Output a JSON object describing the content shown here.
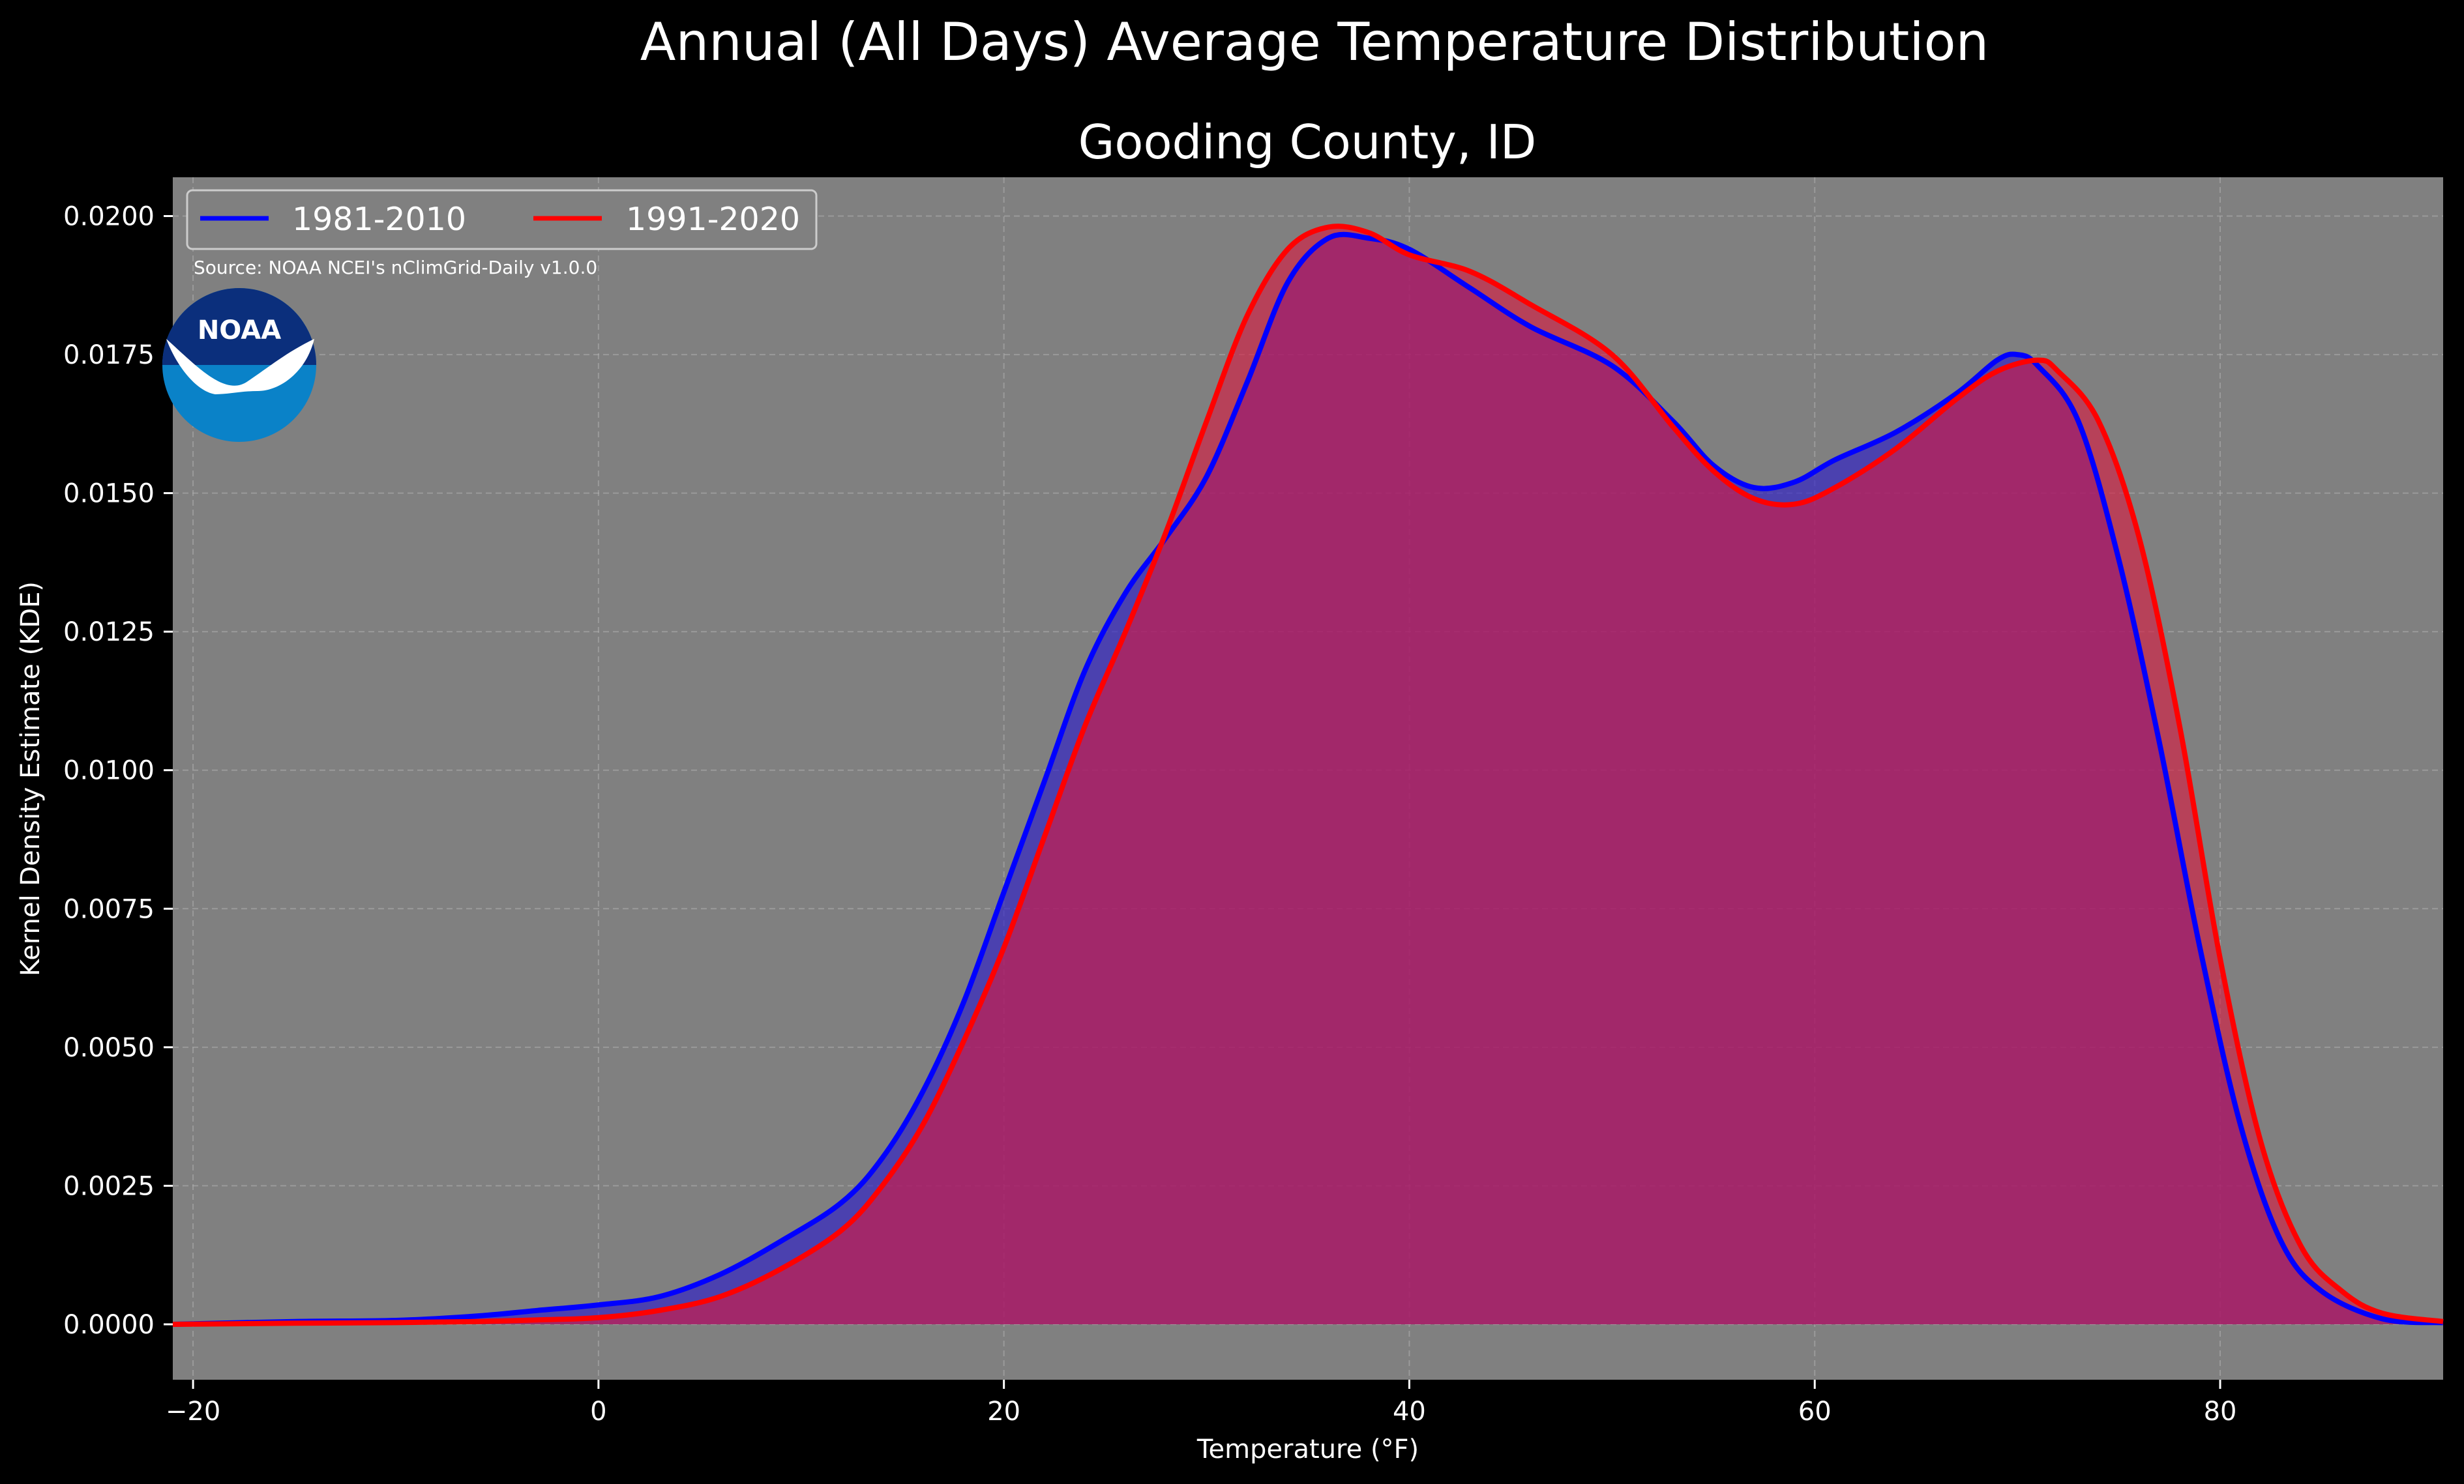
{
  "chart_data": {
    "type": "area",
    "suptitle": "Annual (All Days) Average Temperature Distribution",
    "title": "Gooding County, ID",
    "xlabel": "Temperature (°F)",
    "ylabel": "Kernel Density Estimate (KDE)",
    "source": "Source: NOAA NCEI's nClimGrid-Daily v1.0.0",
    "logo_text": "NOAA",
    "xlim": [
      -21,
      91
    ],
    "ylim": [
      -0.001,
      0.0207
    ],
    "x_ticks": [
      -20,
      0,
      20,
      40,
      60,
      80
    ],
    "x_tick_labels": [
      "−20",
      "0",
      "20",
      "40",
      "60",
      "80"
    ],
    "y_ticks": [
      0.0,
      0.0025,
      0.005,
      0.0075,
      0.01,
      0.0125,
      0.015,
      0.0175,
      0.02
    ],
    "y_tick_labels": [
      "0.0000",
      "0.0025",
      "0.0050",
      "0.0075",
      "0.0100",
      "0.0125",
      "0.0150",
      "0.0175",
      "0.0200"
    ],
    "grid": true,
    "legend_position": "top-left",
    "background_color": "#808080",
    "series": [
      {
        "name": "1981-2010",
        "color": "#0000ff",
        "fill": "#2a1acc",
        "points": [
          [
            -21,
            0.0
          ],
          [
            -15,
            5e-05
          ],
          [
            -10,
            7e-05
          ],
          [
            -6,
            0.00015
          ],
          [
            -3,
            0.00025
          ],
          [
            0,
            0.00035
          ],
          [
            3,
            0.0005
          ],
          [
            6,
            0.0009
          ],
          [
            9,
            0.0015
          ],
          [
            12,
            0.0022
          ],
          [
            14,
            0.003
          ],
          [
            16,
            0.0042
          ],
          [
            18,
            0.0058
          ],
          [
            20,
            0.0078
          ],
          [
            22,
            0.0098
          ],
          [
            24,
            0.0118
          ],
          [
            26,
            0.0132
          ],
          [
            28,
            0.0142
          ],
          [
            30,
            0.0153
          ],
          [
            32,
            0.017
          ],
          [
            34,
            0.0188
          ],
          [
            36,
            0.0196
          ],
          [
            38,
            0.0196
          ],
          [
            40,
            0.0194
          ],
          [
            43,
            0.0187
          ],
          [
            46,
            0.018
          ],
          [
            50,
            0.0173
          ],
          [
            53,
            0.0163
          ],
          [
            55,
            0.0155
          ],
          [
            57,
            0.0151
          ],
          [
            59,
            0.0152
          ],
          [
            61,
            0.0156
          ],
          [
            64,
            0.0161
          ],
          [
            67,
            0.0168
          ],
          [
            69,
            0.0174
          ],
          [
            70,
            0.0175
          ],
          [
            71,
            0.0173
          ],
          [
            73,
            0.0163
          ],
          [
            75,
            0.0138
          ],
          [
            77,
            0.0105
          ],
          [
            79,
            0.0068
          ],
          [
            81,
            0.0036
          ],
          [
            83,
            0.0015
          ],
          [
            85,
            0.0006
          ],
          [
            88,
            0.0001
          ],
          [
            91,
            3e-05
          ]
        ]
      },
      {
        "name": "1991-2020",
        "color": "#ff0000",
        "fill": "#d91a40",
        "points": [
          [
            -21,
            0.0
          ],
          [
            -15,
            2e-05
          ],
          [
            -10,
            3e-05
          ],
          [
            -6,
            5e-05
          ],
          [
            -3,
            8e-05
          ],
          [
            0,
            0.00012
          ],
          [
            3,
            0.00025
          ],
          [
            6,
            0.0005
          ],
          [
            9,
            0.001
          ],
          [
            12,
            0.0017
          ],
          [
            14,
            0.0025
          ],
          [
            16,
            0.0036
          ],
          [
            18,
            0.0051
          ],
          [
            20,
            0.0068
          ],
          [
            22,
            0.0088
          ],
          [
            24,
            0.0108
          ],
          [
            26,
            0.0125
          ],
          [
            28,
            0.0143
          ],
          [
            30,
            0.0163
          ],
          [
            32,
            0.0182
          ],
          [
            34,
            0.0194
          ],
          [
            36,
            0.0198
          ],
          [
            38,
            0.0197
          ],
          [
            40,
            0.0193
          ],
          [
            43,
            0.019
          ],
          [
            46,
            0.0184
          ],
          [
            50,
            0.0175
          ],
          [
            53,
            0.0162
          ],
          [
            55,
            0.0154
          ],
          [
            57,
            0.0149
          ],
          [
            59,
            0.0148
          ],
          [
            61,
            0.0151
          ],
          [
            64,
            0.0158
          ],
          [
            67,
            0.0167
          ],
          [
            69,
            0.0172
          ],
          [
            71,
            0.0174
          ],
          [
            72,
            0.0172
          ],
          [
            74,
            0.0163
          ],
          [
            76,
            0.0142
          ],
          [
            78,
            0.0108
          ],
          [
            80,
            0.0066
          ],
          [
            82,
            0.0033
          ],
          [
            84,
            0.0014
          ],
          [
            86,
            0.0006
          ],
          [
            88,
            0.0002
          ],
          [
            91,
            5e-05
          ]
        ]
      }
    ]
  }
}
